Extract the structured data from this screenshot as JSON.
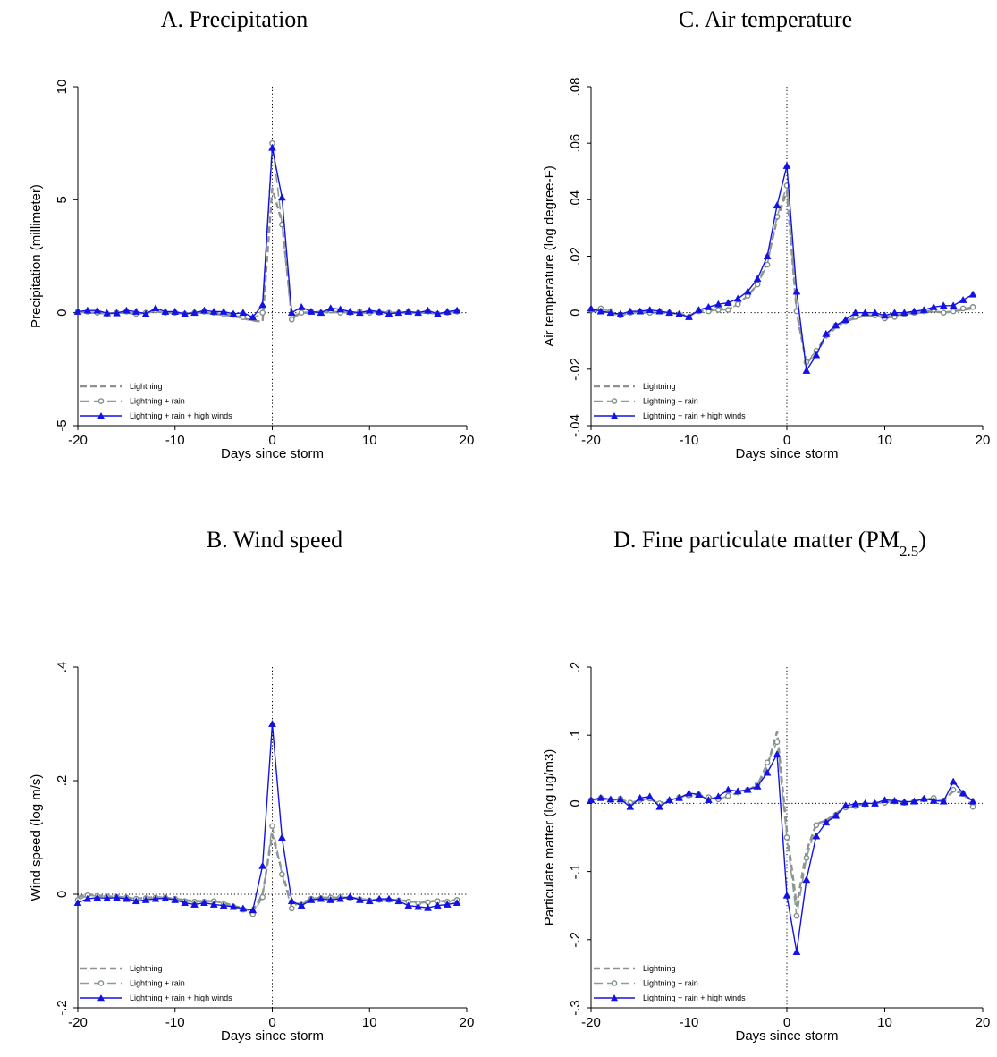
{
  "colors": {
    "lightning": "#909090",
    "lightning_rain_line": "#8a9e96",
    "lightning_rain_marker": "#7f8f88",
    "lightning_rain_wind": "#1212e6"
  },
  "legend": [
    {
      "label": "Lightning",
      "style": "dashed",
      "marker": "none"
    },
    {
      "label": "Lightning + rain",
      "style": "longdash",
      "marker": "circle"
    },
    {
      "label": "Lightning + rain + high winds",
      "style": "solid",
      "marker": "triangle"
    }
  ],
  "chart_data": [
    {
      "id": "precipitation",
      "type": "line",
      "title": "A. Precipitation",
      "xlabel": "Days since storm",
      "ylabel": "Precipitation (millimeter)",
      "xlim": [
        -20,
        20
      ],
      "ylim": [
        -5,
        10
      ],
      "xticks": [
        -20,
        -10,
        0,
        10,
        20
      ],
      "xtick_labels": [
        "-20",
        "-10",
        "0",
        "10",
        "20"
      ],
      "yticks": [
        -5,
        0,
        5,
        10
      ],
      "ytick_labels": [
        "-5",
        "0",
        "5",
        "10"
      ],
      "zero_lines": {
        "x": 0,
        "y": 0
      },
      "x": [
        -20,
        -19,
        -18,
        -17,
        -16,
        -15,
        -14,
        -13,
        -12,
        -11,
        -10,
        -9,
        -8,
        -7,
        -6,
        -5,
        -4,
        -3,
        -2,
        -1,
        0,
        1,
        2,
        3,
        4,
        5,
        6,
        7,
        8,
        9,
        10,
        11,
        12,
        13,
        14,
        15,
        16,
        17,
        18,
        19
      ],
      "series": [
        {
          "name": "Lightning",
          "values": [
            0.05,
            0.0,
            0.0,
            -0.05,
            0.0,
            0.0,
            -0.05,
            0.0,
            0.05,
            0.0,
            0.0,
            -0.05,
            0.0,
            0.0,
            -0.05,
            -0.1,
            -0.15,
            -0.25,
            -0.35,
            -0.4,
            5.5,
            4.0,
            -0.2,
            0.0,
            0.0,
            0.05,
            0.0,
            0.05,
            0.0,
            0.0,
            0.0,
            0.05,
            0.0,
            0.0,
            0.0,
            0.0,
            0.0,
            -0.05,
            0.0,
            0.05
          ]
        },
        {
          "name": "Lightning + rain",
          "values": [
            0.05,
            0.05,
            0.0,
            -0.05,
            0.0,
            0.05,
            -0.05,
            0.0,
            0.1,
            0.0,
            0.0,
            -0.05,
            0.0,
            0.05,
            0.0,
            -0.05,
            -0.1,
            -0.2,
            -0.25,
            0.0,
            7.5,
            3.9,
            -0.3,
            0.0,
            0.05,
            0.0,
            0.1,
            0.0,
            0.0,
            0.05,
            0.0,
            0.0,
            0.0,
            0.0,
            0.05,
            0.0,
            0.05,
            -0.05,
            0.0,
            0.05
          ]
        },
        {
          "name": "Lightning + rain + high winds",
          "values": [
            0.05,
            0.1,
            0.1,
            -0.02,
            -0.02,
            0.1,
            0.05,
            -0.05,
            0.2,
            0.05,
            0.05,
            -0.05,
            0.0,
            0.1,
            0.05,
            0.05,
            -0.05,
            0.0,
            -0.2,
            0.35,
            7.3,
            5.1,
            0.0,
            0.25,
            0.05,
            0.0,
            0.2,
            0.15,
            0.05,
            0.0,
            0.1,
            0.05,
            -0.05,
            0.0,
            0.05,
            0.0,
            0.1,
            -0.05,
            0.05,
            0.1
          ]
        }
      ]
    },
    {
      "id": "air-temperature",
      "type": "line",
      "title": "C. Air temperature",
      "xlabel": "Days since storm",
      "ylabel": "Air temperature (log degree-F)",
      "xlim": [
        -20,
        20
      ],
      "ylim": [
        -0.04,
        0.08
      ],
      "xticks": [
        -20,
        -10,
        0,
        10,
        20
      ],
      "xtick_labels": [
        "-20",
        "-10",
        "0",
        "10",
        "20"
      ],
      "yticks": [
        -0.04,
        -0.02,
        0,
        0.02,
        0.04,
        0.06,
        0.08
      ],
      "ytick_labels": [
        "-.04",
        "-.02",
        "0",
        ".02",
        ".04",
        ".06",
        ".08"
      ],
      "zero_lines": {
        "x": 0,
        "y": 0
      },
      "x": [
        -20,
        -19,
        -18,
        -17,
        -16,
        -15,
        -14,
        -13,
        -12,
        -11,
        -10,
        -9,
        -8,
        -7,
        -6,
        -5,
        -4,
        -3,
        -2,
        -1,
        0,
        1,
        2,
        3,
        4,
        5,
        6,
        7,
        8,
        9,
        10,
        11,
        12,
        13,
        14,
        15,
        16,
        17,
        18,
        19
      ],
      "series": [
        {
          "name": "Lightning",
          "values": [
            0.0005,
            0.0005,
            0.0,
            -0.001,
            0.0,
            0.0,
            0.0,
            0.0,
            0.0,
            -0.0005,
            -0.001,
            0.0005,
            0.001,
            0.0015,
            0.001,
            0.003,
            0.006,
            0.01,
            0.018,
            0.033,
            0.043,
            0.0,
            -0.018,
            -0.014,
            -0.009,
            -0.005,
            -0.003,
            -0.002,
            -0.001,
            -0.001,
            -0.0015,
            -0.001,
            -0.0005,
            0.0,
            0.0,
            0.0005,
            0.0,
            0.0005,
            0.001,
            0.0015
          ]
        },
        {
          "name": "Lightning + rain",
          "values": [
            0.001,
            0.0015,
            0.0005,
            -0.001,
            0.0,
            0.0005,
            0.0,
            0.0005,
            0.0,
            -0.0005,
            -0.0015,
            0.0005,
            0.0005,
            0.001,
            0.001,
            0.003,
            0.006,
            0.01,
            0.017,
            0.034,
            0.045,
            0.0005,
            -0.0175,
            -0.0135,
            -0.008,
            -0.0045,
            -0.003,
            -0.0015,
            -0.0005,
            -0.001,
            -0.002,
            -0.0015,
            -0.0005,
            0.0,
            0.0005,
            0.001,
            0.0,
            0.0005,
            0.0015,
            0.002
          ]
        },
        {
          "name": "Lightning + rain + high winds",
          "values": [
            0.0015,
            0.0005,
            0.0,
            -0.0005,
            0.0005,
            0.0005,
            0.001,
            0.0005,
            0.0,
            -0.0005,
            -0.0015,
            0.001,
            0.002,
            0.003,
            0.0035,
            0.005,
            0.0075,
            0.012,
            0.02,
            0.038,
            0.052,
            0.0075,
            -0.0205,
            -0.015,
            -0.0075,
            -0.0045,
            -0.0025,
            0.0,
            0.0,
            0.0,
            -0.001,
            0.0,
            0.0,
            0.0005,
            0.001,
            0.002,
            0.0025,
            0.0025,
            0.0045,
            0.0065
          ]
        }
      ]
    },
    {
      "id": "wind-speed",
      "type": "line",
      "title": "B. Wind speed",
      "xlabel": "Days since storm",
      "ylabel": "Wind speed (log m/s)",
      "xlim": [
        -20,
        20
      ],
      "ylim": [
        -0.2,
        0.4
      ],
      "xticks": [
        -20,
        -10,
        0,
        10,
        20
      ],
      "xtick_labels": [
        "-20",
        "-10",
        "0",
        "10",
        "20"
      ],
      "yticks": [
        -0.2,
        0,
        0.2,
        0.4
      ],
      "ytick_labels": [
        "-.2",
        "0",
        ".2",
        ".4"
      ],
      "zero_lines": {
        "x": 0,
        "y": 0
      },
      "x": [
        -20,
        -19,
        -18,
        -17,
        -16,
        -15,
        -14,
        -13,
        -12,
        -11,
        -10,
        -9,
        -8,
        -7,
        -6,
        -5,
        -4,
        -3,
        -2,
        -1,
        0,
        1,
        2,
        3,
        4,
        5,
        6,
        7,
        8,
        9,
        10,
        11,
        12,
        13,
        14,
        15,
        16,
        17,
        18,
        19
      ],
      "series": [
        {
          "name": "Lightning",
          "values": [
            -0.005,
            0.0,
            -0.002,
            -0.004,
            -0.004,
            -0.006,
            -0.008,
            -0.006,
            -0.005,
            -0.006,
            -0.008,
            -0.01,
            -0.012,
            -0.012,
            -0.012,
            -0.015,
            -0.02,
            -0.025,
            -0.03,
            0.0,
            0.105,
            0.04,
            -0.02,
            -0.015,
            -0.008,
            -0.006,
            -0.006,
            -0.006,
            -0.006,
            -0.008,
            -0.01,
            -0.01,
            -0.01,
            -0.01,
            -0.012,
            -0.014,
            -0.012,
            -0.012,
            -0.012,
            -0.01
          ]
        },
        {
          "name": "Lightning + rain",
          "values": [
            -0.01,
            -0.002,
            -0.003,
            -0.004,
            -0.005,
            -0.006,
            -0.008,
            -0.007,
            -0.006,
            -0.006,
            -0.008,
            -0.012,
            -0.013,
            -0.013,
            -0.012,
            -0.017,
            -0.022,
            -0.027,
            -0.035,
            -0.005,
            0.12,
            0.035,
            -0.025,
            -0.018,
            -0.008,
            -0.007,
            -0.006,
            -0.005,
            -0.006,
            -0.009,
            -0.011,
            -0.01,
            -0.01,
            -0.011,
            -0.013,
            -0.016,
            -0.014,
            -0.012,
            -0.013,
            -0.01
          ]
        },
        {
          "name": "Lightning + rain + high winds",
          "values": [
            -0.015,
            -0.008,
            -0.006,
            -0.007,
            -0.006,
            -0.008,
            -0.012,
            -0.01,
            -0.008,
            -0.007,
            -0.01,
            -0.015,
            -0.018,
            -0.015,
            -0.018,
            -0.02,
            -0.022,
            -0.025,
            -0.028,
            0.05,
            0.3,
            0.1,
            -0.012,
            -0.02,
            -0.01,
            -0.008,
            -0.01,
            -0.008,
            -0.004,
            -0.01,
            -0.012,
            -0.008,
            -0.008,
            -0.012,
            -0.02,
            -0.022,
            -0.024,
            -0.02,
            -0.018,
            -0.015
          ]
        }
      ]
    },
    {
      "id": "particulate-matter",
      "type": "line",
      "title": "D. Fine particulate matter (PM",
      "title_subscript": "2.5",
      "title_suffix": ")",
      "xlabel": "Days since storm",
      "ylabel": "Particulate matter (log ug/m3)",
      "xlim": [
        -20,
        20
      ],
      "ylim": [
        -0.3,
        0.2
      ],
      "xticks": [
        -20,
        -10,
        0,
        10,
        20
      ],
      "xtick_labels": [
        "-20",
        "-10",
        "0",
        "10",
        "20"
      ],
      "yticks": [
        -0.3,
        -0.2,
        -0.1,
        0,
        0.1,
        0.2
      ],
      "ytick_labels": [
        "-.3",
        "-.2",
        "-.1",
        "0",
        ".1",
        ".2"
      ],
      "zero_lines": {
        "x": 0,
        "y": 0
      },
      "x": [
        -20,
        -19,
        -18,
        -17,
        -16,
        -15,
        -14,
        -13,
        -12,
        -11,
        -10,
        -9,
        -8,
        -7,
        -6,
        -5,
        -4,
        -3,
        -2,
        -1,
        0,
        1,
        2,
        3,
        4,
        5,
        6,
        7,
        8,
        9,
        10,
        11,
        12,
        13,
        14,
        15,
        16,
        17,
        18,
        19
      ],
      "series": [
        {
          "name": "Lightning",
          "values": [
            0.005,
            0.007,
            0.005,
            0.006,
            0.0,
            0.005,
            0.006,
            0.0,
            0.005,
            0.008,
            0.01,
            0.012,
            0.01,
            0.007,
            0.01,
            0.015,
            0.018,
            0.025,
            0.055,
            0.105,
            -0.04,
            -0.15,
            -0.07,
            -0.03,
            -0.025,
            -0.015,
            -0.005,
            -0.003,
            0.0,
            0.0,
            0.002,
            0.003,
            0.002,
            0.003,
            0.005,
            0.006,
            0.005,
            0.018,
            0.015,
            0.002
          ]
        },
        {
          "name": "Lightning + rain",
          "values": [
            0.005,
            0.008,
            0.005,
            0.007,
            0.001,
            0.005,
            0.007,
            0.0,
            0.004,
            0.009,
            0.012,
            0.013,
            0.009,
            0.006,
            0.011,
            0.016,
            0.02,
            0.028,
            0.06,
            0.09,
            -0.05,
            -0.165,
            -0.08,
            -0.032,
            -0.027,
            -0.017,
            -0.006,
            -0.004,
            -0.001,
            0.0,
            0.001,
            0.003,
            0.001,
            0.003,
            0.006,
            0.008,
            0.004,
            0.02,
            0.014,
            -0.005
          ]
        },
        {
          "name": "Lightning + rain + high winds",
          "values": [
            0.005,
            0.008,
            0.006,
            0.006,
            -0.005,
            0.008,
            0.01,
            -0.005,
            0.005,
            0.008,
            0.015,
            0.013,
            0.005,
            0.01,
            0.02,
            0.018,
            0.02,
            0.025,
            0.045,
            0.072,
            -0.135,
            -0.218,
            -0.112,
            -0.048,
            -0.028,
            -0.018,
            -0.003,
            -0.001,
            0.0,
            0.0,
            0.005,
            0.004,
            0.002,
            0.003,
            0.007,
            0.004,
            0.003,
            0.032,
            0.015,
            0.003
          ]
        }
      ]
    }
  ]
}
